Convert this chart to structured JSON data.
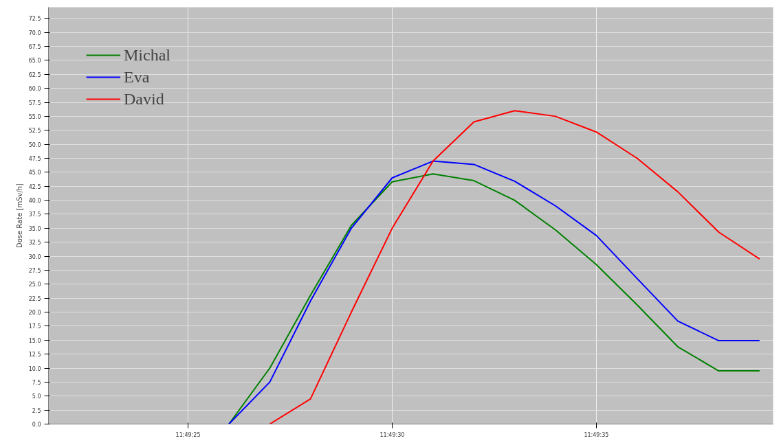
{
  "chart_data": {
    "type": "line",
    "ylabel": "Dose Rate [mSv/h]",
    "x": [
      11.823889,
      11.824167,
      11.824444,
      11.824722,
      11.825,
      11.825278,
      11.825556,
      11.825833,
      11.826111,
      11.826389,
      11.826667,
      11.826944,
      11.827222,
      11.8275
    ],
    "series": [
      {
        "name": "Michal",
        "color": "#008000",
        "values": [
          0,
          10,
          23,
          35.5,
          43.3,
          44.7,
          43.5,
          40,
          34.7,
          28.5,
          21.3,
          13.8,
          9.5,
          9.5
        ]
      },
      {
        "name": "Eva",
        "color": "#0000ff",
        "values": [
          0,
          7.5,
          22,
          35,
          44,
          47,
          46.4,
          43.4,
          39,
          33.7,
          26,
          18.4,
          14.9,
          14.9
        ]
      },
      {
        "name": "David",
        "color": "#ff0000",
        "x": [
          11.824167,
          11.824444,
          11.824722,
          11.825,
          11.825278,
          11.825556,
          11.825833,
          11.826111,
          11.826389,
          11.826667,
          11.826944,
          11.827222,
          11.8275
        ],
        "values": [
          0,
          4.5,
          20,
          35,
          47,
          54,
          56,
          55,
          52.2,
          47.5,
          41.5,
          34.3,
          29.5
        ]
      }
    ],
    "xlim": [
      11.822661,
      11.827592
    ],
    "xticks": [
      {
        "value": 11.823611,
        "label": "11:49:25"
      },
      {
        "value": 11.825,
        "label": "11:49:30"
      },
      {
        "value": 11.826389,
        "label": "11:49:35"
      }
    ],
    "ylim": [
      0,
      74.5
    ],
    "yticks": [
      {
        "value": 0,
        "label": "0.0"
      },
      {
        "value": 2.5,
        "label": "2.5"
      },
      {
        "value": 5,
        "label": "5.0"
      },
      {
        "value": 7.5,
        "label": "7.5"
      },
      {
        "value": 10,
        "label": "10.0"
      },
      {
        "value": 12.5,
        "label": "12.5"
      },
      {
        "value": 15,
        "label": "15.0"
      },
      {
        "value": 17.5,
        "label": "17.5"
      },
      {
        "value": 20,
        "label": "20.0"
      },
      {
        "value": 22.5,
        "label": "22.5"
      },
      {
        "value": 25,
        "label": "25.0"
      },
      {
        "value": 27.5,
        "label": "27.5"
      },
      {
        "value": 30,
        "label": "30.0"
      },
      {
        "value": 32.5,
        "label": "32.5"
      },
      {
        "value": 35,
        "label": "35.0"
      },
      {
        "value": 37.5,
        "label": "37.5"
      },
      {
        "value": 40,
        "label": "40.0"
      },
      {
        "value": 42.5,
        "label": "42.5"
      },
      {
        "value": 45,
        "label": "45.0"
      },
      {
        "value": 47.5,
        "label": "47.5"
      },
      {
        "value": 50,
        "label": "50.0"
      },
      {
        "value": 52.5,
        "label": "52.5"
      },
      {
        "value": 55,
        "label": "55.0"
      },
      {
        "value": 57.5,
        "label": "57.5"
      },
      {
        "value": 60,
        "label": "60.0"
      },
      {
        "value": 62.5,
        "label": "62.5"
      },
      {
        "value": 65,
        "label": "65.0"
      },
      {
        "value": 67.5,
        "label": "67.5"
      },
      {
        "value": 70,
        "label": "70.0"
      },
      {
        "value": 72.5,
        "label": "72.5"
      }
    ],
    "grid": true,
    "legend": "top left",
    "marker": "none",
    "line_style": "solid"
  }
}
